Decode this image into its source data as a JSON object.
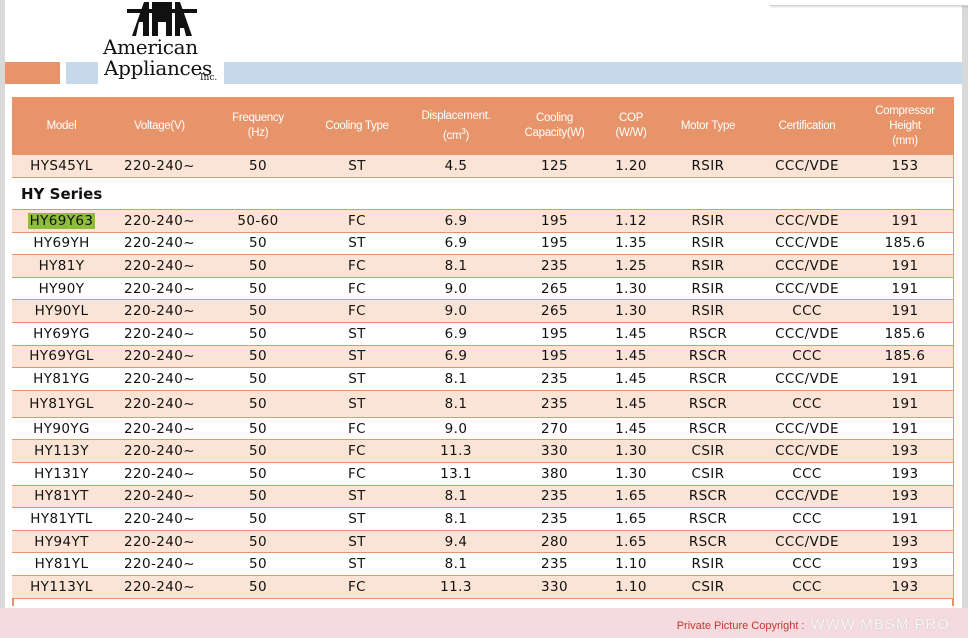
{
  "logo": {
    "line1": "American",
    "line2": "Appliances",
    "inc": "Inc."
  },
  "columns": [
    "Model",
    "Voltage(V)",
    "Frequency (Hz)",
    "Cooling Type",
    "Displacement. (cm³)",
    "Cooling Capacity(W)",
    "COP (W/W)",
    "Motor Type",
    "Certification",
    "Compressor Height (mm)"
  ],
  "header": {
    "model": "Model",
    "voltage": "Voltage(V)",
    "frequency_1": "Frequency",
    "frequency_2": "(Hz)",
    "cooling_type": "Cooling Type",
    "displacement_1": "Displacement.",
    "displacement_2": "(cm",
    "displacement_sup": "3",
    "displacement_3": ")",
    "capacity_1": "Cooling",
    "capacity_2": "Capacity(W)",
    "cop_1": "COP",
    "cop_2": "(W/W)",
    "motor": "Motor Type",
    "certification": "Certification",
    "height_1": "Compressor",
    "height_2": "Height",
    "height_3": "(mm)"
  },
  "first_row": [
    "HYS45YL",
    "220-240~",
    "50",
    "ST",
    "4.5",
    "125",
    "1.20",
    "RSIR",
    "CCC/VDE",
    "153"
  ],
  "section_title": "HY Series",
  "rows": [
    [
      "HY69Y63",
      "220-240~",
      "50-60",
      "FC",
      "6.9",
      "195",
      "1.12",
      "RSIR",
      "CCC/VDE",
      "191"
    ],
    [
      "HY69YH",
      "220-240~",
      "50",
      "ST",
      "6.9",
      "195",
      "1.35",
      "RSIR",
      "CCC/VDE",
      "185.6"
    ],
    [
      "HY81Y",
      "220-240~",
      "50",
      "FC",
      "8.1",
      "235",
      "1.25",
      "RSIR",
      "CCC/VDE",
      "191"
    ],
    [
      "HY90Y",
      "220-240~",
      "50",
      "FC",
      "9.0",
      "265",
      "1.30",
      "RSIR",
      "CCC/VDE",
      "191"
    ],
    [
      "HY90YL",
      "220-240~",
      "50",
      "FC",
      "9.0",
      "265",
      "1.30",
      "RSIR",
      "CCC",
      "191"
    ],
    [
      "HY69YG",
      "220-240~",
      "50",
      "ST",
      "6.9",
      "195",
      "1.45",
      "RSCR",
      "CCC/VDE",
      "185.6"
    ],
    [
      "HY69YGL",
      "220-240~",
      "50",
      "ST",
      "6.9",
      "195",
      "1.45",
      "RSCR",
      "CCC",
      "185.6"
    ],
    [
      "HY81YG",
      "220-240~",
      "50",
      "ST",
      "8.1",
      "235",
      "1.45",
      "RSCR",
      "CCC/VDE",
      "191"
    ],
    [
      "HY81YGL",
      "220-240~",
      "50",
      "ST",
      "8.1",
      "235",
      "1.45",
      "RSCR",
      "CCC",
      "191"
    ],
    [
      "HY90YG",
      "220-240~",
      "50",
      "FC",
      "9.0",
      "270",
      "1.45",
      "RSCR",
      "CCC/VDE",
      "191"
    ],
    [
      "HY113Y",
      "220-240~",
      "50",
      "FC",
      "11.3",
      "330",
      "1.30",
      "CSIR",
      "CCC/VDE",
      "193"
    ],
    [
      "HY131Y",
      "220-240~",
      "50",
      "FC",
      "13.1",
      "380",
      "1.30",
      "CSIR",
      "CCC",
      "193"
    ],
    [
      "HY81YT",
      "220-240~",
      "50",
      "ST",
      "8.1",
      "235",
      "1.65",
      "RSCR",
      "CCC/VDE",
      "193"
    ],
    [
      "HY81YTL",
      "220-240~",
      "50",
      "ST",
      "8.1",
      "235",
      "1.65",
      "RSCR",
      "CCC",
      "191"
    ],
    [
      "HY94YT",
      "220-240~",
      "50",
      "ST",
      "9.4",
      "280",
      "1.65",
      "RSCR",
      "CCC/VDE",
      "193"
    ],
    [
      "HY81YL",
      "220-240~",
      "50",
      "ST",
      "8.1",
      "235",
      "1.10",
      "RSIR",
      "CCC",
      "193"
    ],
    [
      "HY113YL",
      "220-240~",
      "50",
      "FC",
      "11.3",
      "330",
      "1.10",
      "CSIR",
      "CCC",
      "193"
    ]
  ],
  "footer": {
    "copyright": "Private Picture Copyright :",
    "site": "WWW.MBSM.PRO"
  },
  "colors": {
    "header_orange": "#e8946a",
    "row_tint": "#fbe4d6",
    "band_blue": "#c5d9ea",
    "highlight_green": "#8ebd3b"
  }
}
